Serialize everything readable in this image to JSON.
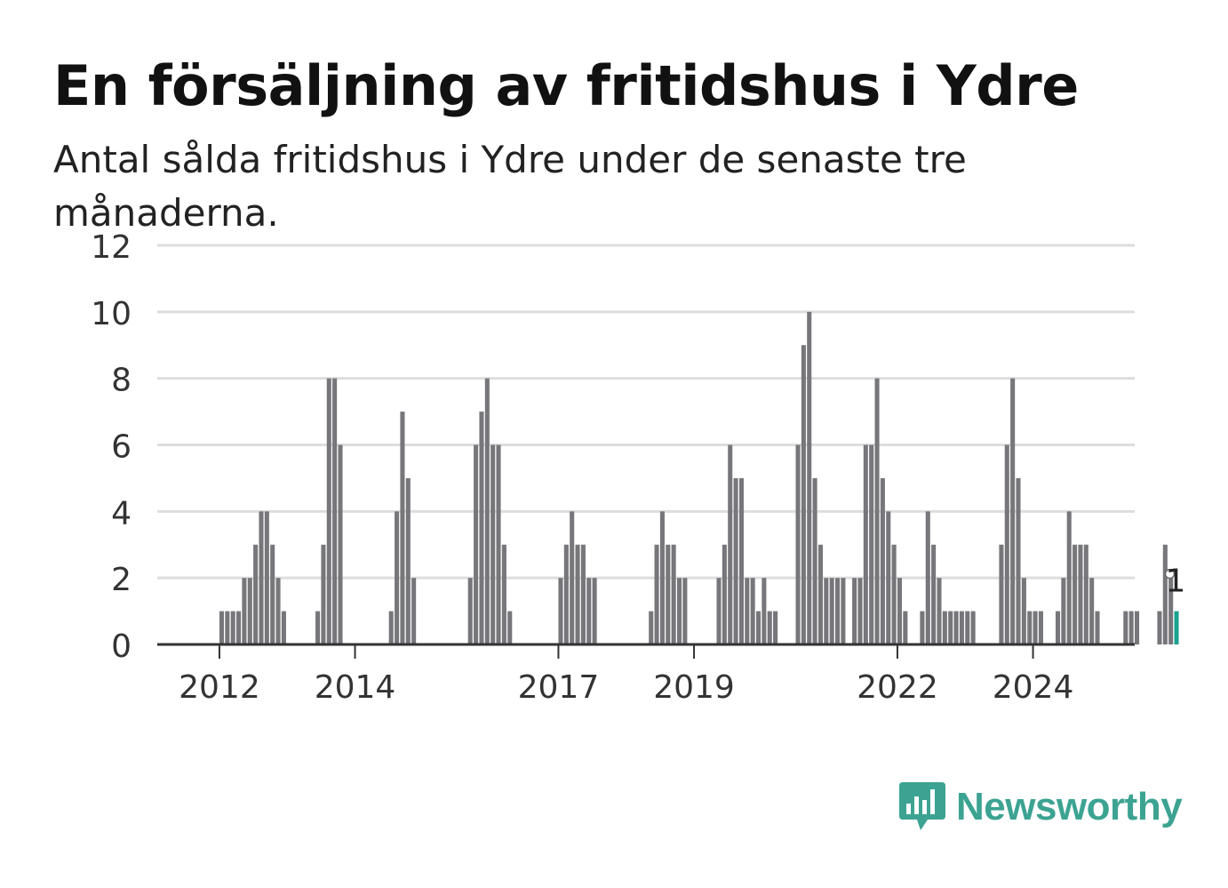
{
  "title": "En försäljning av fritidshus i Ydre",
  "subtitle": "Antal sålda fritidshus i Ydre under de senaste tre månaderna.",
  "brand": {
    "name": "Newsworthy",
    "icon": "newsworthy-logo-icon",
    "color": "#3ca392"
  },
  "colors": {
    "bar": "#76767b",
    "highlight": "#1aa38f",
    "grid": "#dddddd",
    "axis": "#333333"
  },
  "chart_data": {
    "type": "bar",
    "start": "2011-01",
    "xlim": [
      "2011-02",
      "2025-07"
    ],
    "ylim": [
      0,
      12
    ],
    "y_ticks": [
      "0",
      "2",
      "4",
      "6",
      "8",
      "10",
      "12"
    ],
    "x_ticks": [
      "2012",
      "2014",
      "2017",
      "2019",
      "2022",
      "2024"
    ],
    "grid": true,
    "values": [
      0,
      0,
      0,
      0,
      0,
      0,
      0,
      0,
      0,
      0,
      0,
      0,
      1,
      1,
      1,
      1,
      2,
      2,
      3,
      4,
      4,
      3,
      2,
      1,
      0,
      0,
      0,
      0,
      0,
      1,
      3,
      8,
      8,
      6,
      0,
      0,
      0,
      0,
      0,
      0,
      0,
      0,
      1,
      4,
      7,
      5,
      2,
      0,
      0,
      0,
      0,
      0,
      0,
      0,
      0,
      0,
      2,
      6,
      7,
      8,
      6,
      6,
      3,
      1,
      0,
      0,
      0,
      0,
      0,
      0,
      0,
      0,
      2,
      3,
      4,
      3,
      3,
      2,
      2,
      0,
      0,
      0,
      0,
      0,
      0,
      0,
      0,
      0,
      1,
      3,
      4,
      3,
      3,
      2,
      2,
      0,
      0,
      0,
      0,
      0,
      2,
      3,
      6,
      5,
      5,
      2,
      2,
      1,
      2,
      1,
      1,
      0,
      0,
      0,
      6,
      9,
      10,
      5,
      3,
      2,
      2,
      2,
      2,
      0,
      2,
      2,
      6,
      6,
      8,
      5,
      4,
      3,
      2,
      1,
      0,
      0,
      1,
      4,
      3,
      2,
      1,
      1,
      1,
      1,
      1,
      1,
      0,
      0,
      0,
      0,
      3,
      6,
      8,
      5,
      2,
      1,
      1,
      1,
      0,
      0,
      1,
      2,
      4,
      3,
      3,
      3,
      2,
      1,
      0,
      0,
      0,
      0,
      1,
      1,
      1,
      0,
      0,
      0,
      1,
      3,
      2,
      1
    ],
    "highlight_label": "1"
  }
}
